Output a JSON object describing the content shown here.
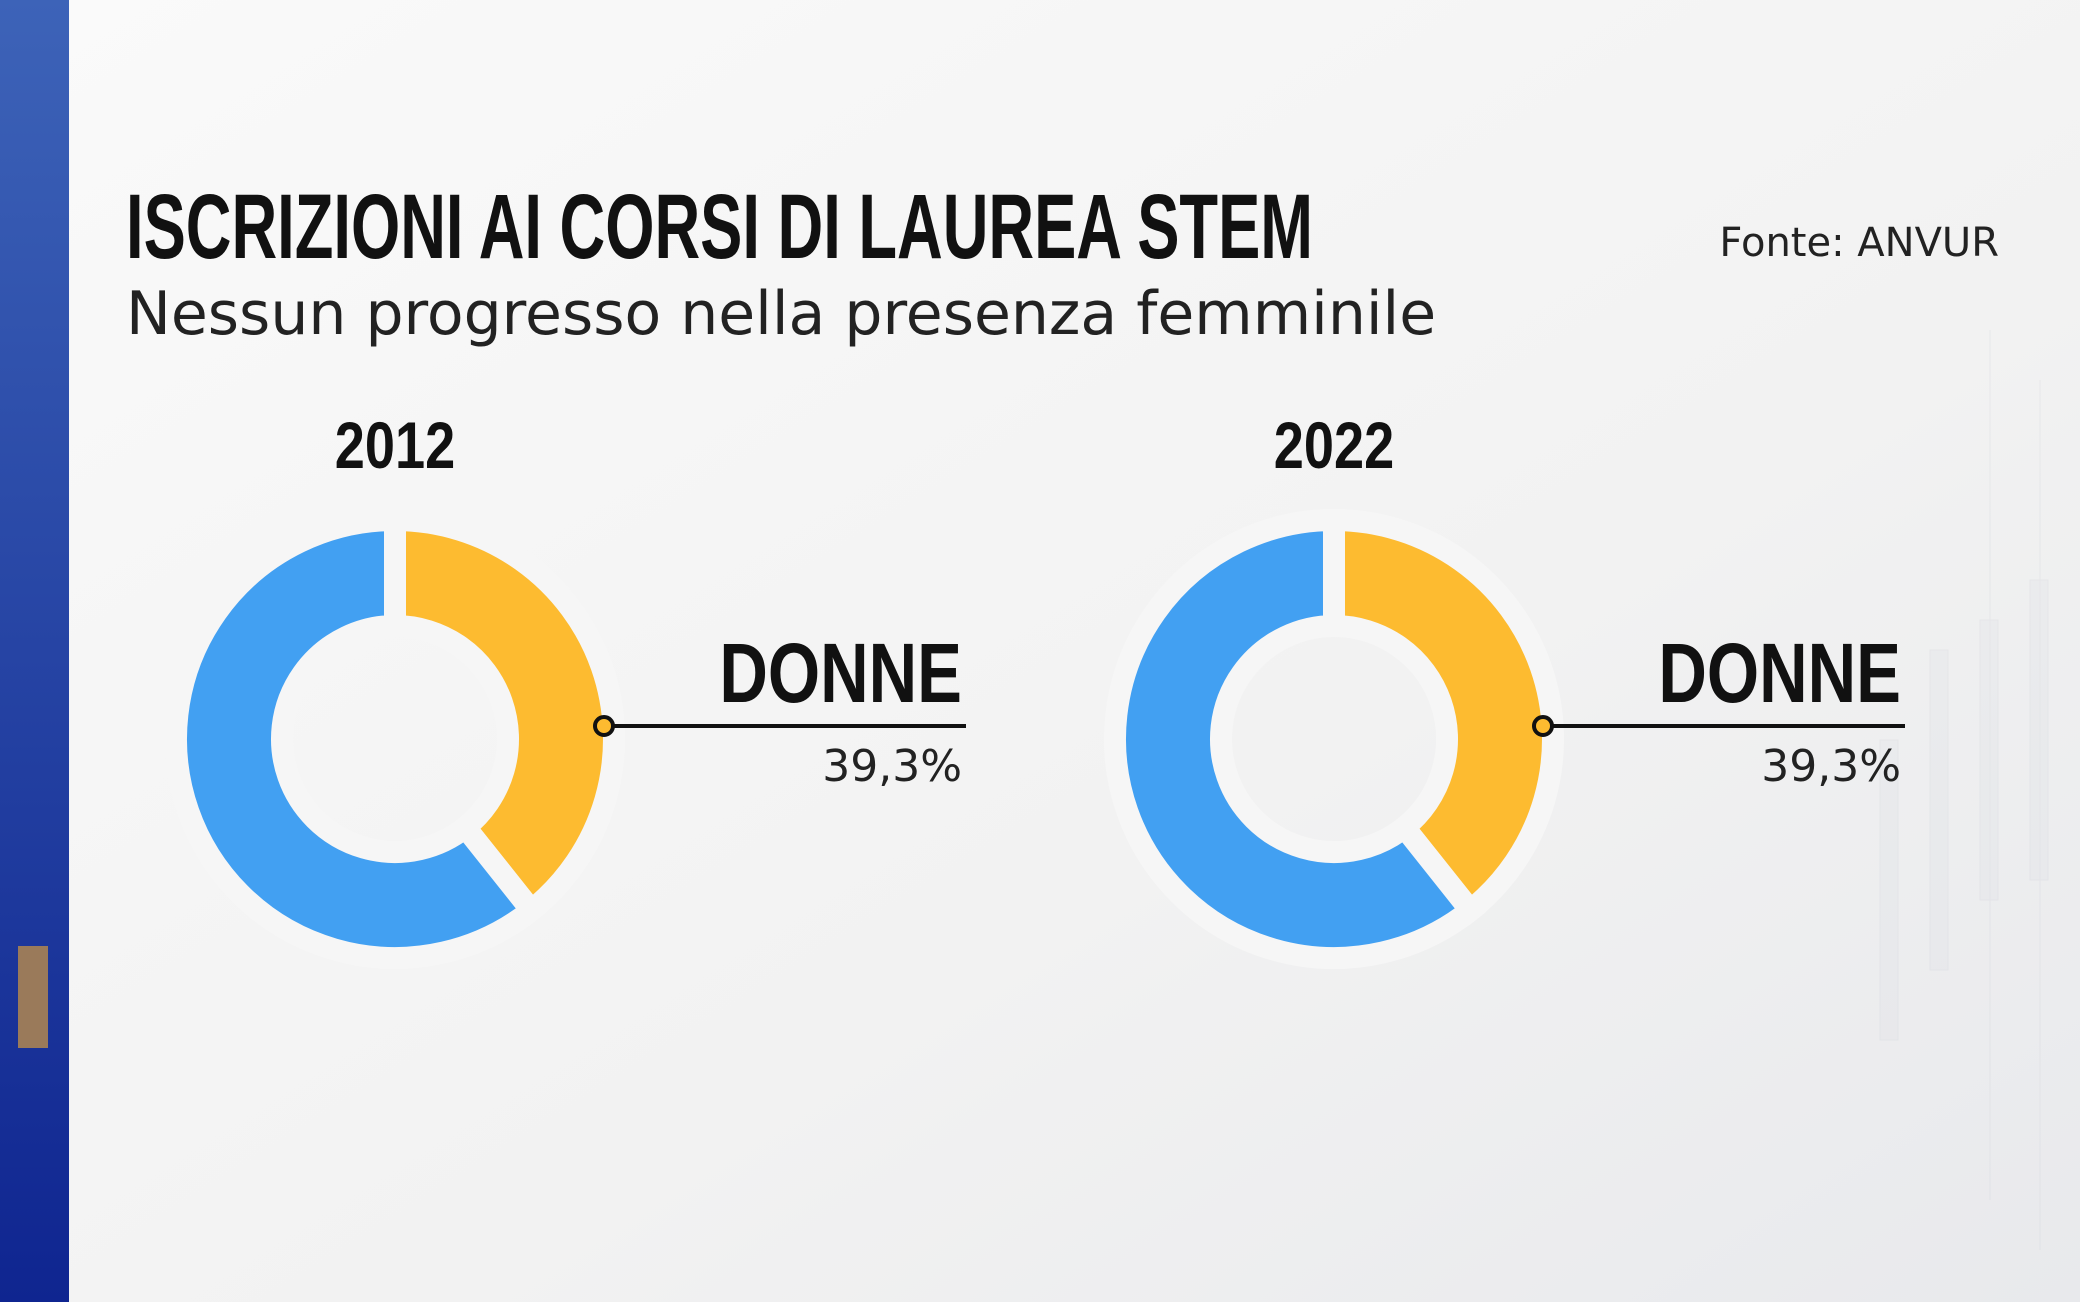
{
  "title": "ISCRIZIONI AI CORSI DI LAUREA STEM",
  "subtitle": "Nessun progresso nella presenza femminile",
  "source": "Fonte: ANVUR",
  "chart_data": [
    {
      "type": "pie",
      "title": "2012",
      "categories": [
        "DONNE",
        null
      ],
      "values": [
        39.3,
        60.7
      ],
      "value_labels": [
        "39,3%",
        null
      ],
      "colors": [
        "#fdbb30",
        "#42a0f2"
      ],
      "donut": true
    },
    {
      "type": "pie",
      "title": "2022",
      "categories": [
        "DONNE",
        null
      ],
      "values": [
        39.3,
        60.7
      ],
      "value_labels": [
        "39,3%",
        null
      ],
      "colors": [
        "#fdbb30",
        "#42a0f2"
      ],
      "donut": true
    }
  ]
}
